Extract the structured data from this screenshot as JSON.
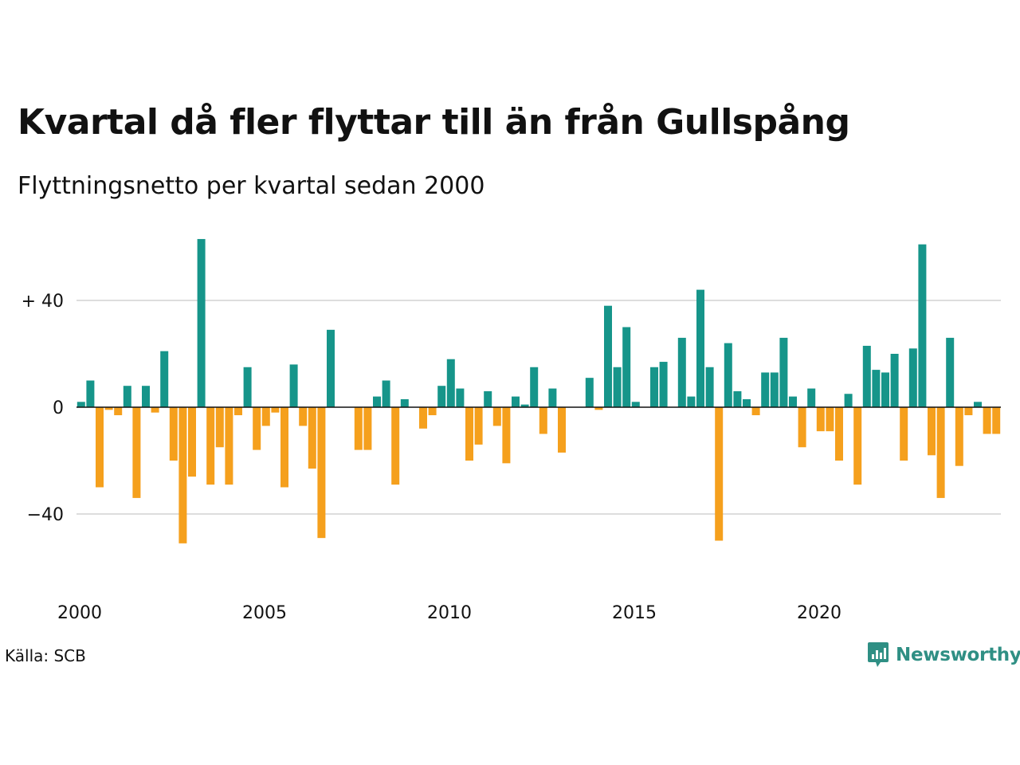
{
  "title": "Kvartal då fler flyttar till än från Gullspång",
  "subtitle": "Flyttningsnetto per kvartal sedan 2000",
  "source": "Källa: SCB",
  "brand": {
    "name": "Newsworthy",
    "icon": "newsworthy-logo-icon",
    "color": "#2f8f84"
  },
  "colors": {
    "positive": "#16958a",
    "negative": "#f5a01d",
    "grid": "#dddddd",
    "zero_line": "#111111"
  },
  "chart_data": {
    "type": "bar",
    "title": "Kvartal då fler flyttar till än från Gullspång",
    "subtitle": "Flyttningsnetto per kvartal sedan 2000",
    "xlabel": "",
    "ylabel": "",
    "x_range": [
      2000,
      2025
    ],
    "ylim": [
      -50,
      63
    ],
    "x_ticks": [
      {
        "value": 2000,
        "label": "2000"
      },
      {
        "value": 2005,
        "label": "2005"
      },
      {
        "value": 2010,
        "label": "2010"
      },
      {
        "value": 2015,
        "label": "2015"
      },
      {
        "value": 2020,
        "label": "2020"
      }
    ],
    "y_ticks": [
      {
        "value": 40,
        "label": "+ 40"
      },
      {
        "value": 0,
        "label": "0"
      },
      {
        "value": -40,
        "label": "−40"
      }
    ],
    "grid": true,
    "categories": [
      "2000 Q1",
      "2000 Q2",
      "2000 Q3",
      "2000 Q4",
      "2001 Q1",
      "2001 Q2",
      "2001 Q3",
      "2001 Q4",
      "2002 Q1",
      "2002 Q2",
      "2002 Q3",
      "2002 Q4",
      "2003 Q1",
      "2003 Q2",
      "2003 Q3",
      "2003 Q4",
      "2004 Q1",
      "2004 Q2",
      "2004 Q3",
      "2004 Q4",
      "2005 Q1",
      "2005 Q2",
      "2005 Q3",
      "2005 Q4",
      "2006 Q1",
      "2006 Q2",
      "2006 Q3",
      "2006 Q4",
      "2007 Q1",
      "2007 Q2",
      "2007 Q3",
      "2007 Q4",
      "2008 Q1",
      "2008 Q2",
      "2008 Q3",
      "2008 Q4",
      "2009 Q1",
      "2009 Q2",
      "2009 Q3",
      "2009 Q4",
      "2010 Q1",
      "2010 Q2",
      "2010 Q3",
      "2010 Q4",
      "2011 Q1",
      "2011 Q2",
      "2011 Q3",
      "2011 Q4",
      "2012 Q1",
      "2012 Q2",
      "2012 Q3",
      "2012 Q4",
      "2013 Q1",
      "2013 Q2",
      "2013 Q3",
      "2013 Q4",
      "2014 Q1",
      "2014 Q2",
      "2014 Q3",
      "2014 Q4",
      "2015 Q1",
      "2015 Q2",
      "2015 Q3",
      "2015 Q4",
      "2016 Q1",
      "2016 Q2",
      "2016 Q3",
      "2016 Q4",
      "2017 Q1",
      "2017 Q2",
      "2017 Q3",
      "2017 Q4",
      "2018 Q1",
      "2018 Q2",
      "2018 Q3",
      "2018 Q4",
      "2019 Q1",
      "2019 Q2",
      "2019 Q3",
      "2019 Q4",
      "2020 Q1",
      "2020 Q2",
      "2020 Q3",
      "2020 Q4",
      "2021 Q1",
      "2021 Q2",
      "2021 Q3",
      "2021 Q4",
      "2022 Q1",
      "2022 Q2",
      "2022 Q3",
      "2022 Q4",
      "2023 Q1",
      "2023 Q2",
      "2023 Q3",
      "2023 Q4",
      "2024 Q1",
      "2024 Q2",
      "2024 Q3",
      "2024 Q4"
    ],
    "values": [
      2,
      10,
      -30,
      -1,
      -3,
      8,
      -34,
      8,
      -2,
      21,
      -20,
      -51,
      -26,
      63,
      -29,
      -15,
      -29,
      -3,
      15,
      -16,
      -7,
      -2,
      -30,
      16,
      -7,
      -23,
      -49,
      29,
      0,
      0,
      -16,
      -16,
      4,
      10,
      -29,
      3,
      0,
      -8,
      -3,
      8,
      18,
      7,
      -20,
      -14,
      6,
      -7,
      -21,
      4,
      1,
      15,
      -10,
      7,
      -17,
      0,
      0,
      11,
      -1,
      38,
      15,
      30,
      2,
      0,
      15,
      17,
      0,
      26,
      4,
      44,
      15,
      -50,
      24,
      6,
      3,
      -3,
      13,
      13,
      26,
      4,
      -15,
      7,
      -9,
      -9,
      -20,
      5,
      -29,
      23,
      14,
      13,
      20,
      -20,
      22,
      61,
      -18,
      -34,
      26,
      -22,
      -3,
      2,
      -10,
      -10
    ]
  }
}
